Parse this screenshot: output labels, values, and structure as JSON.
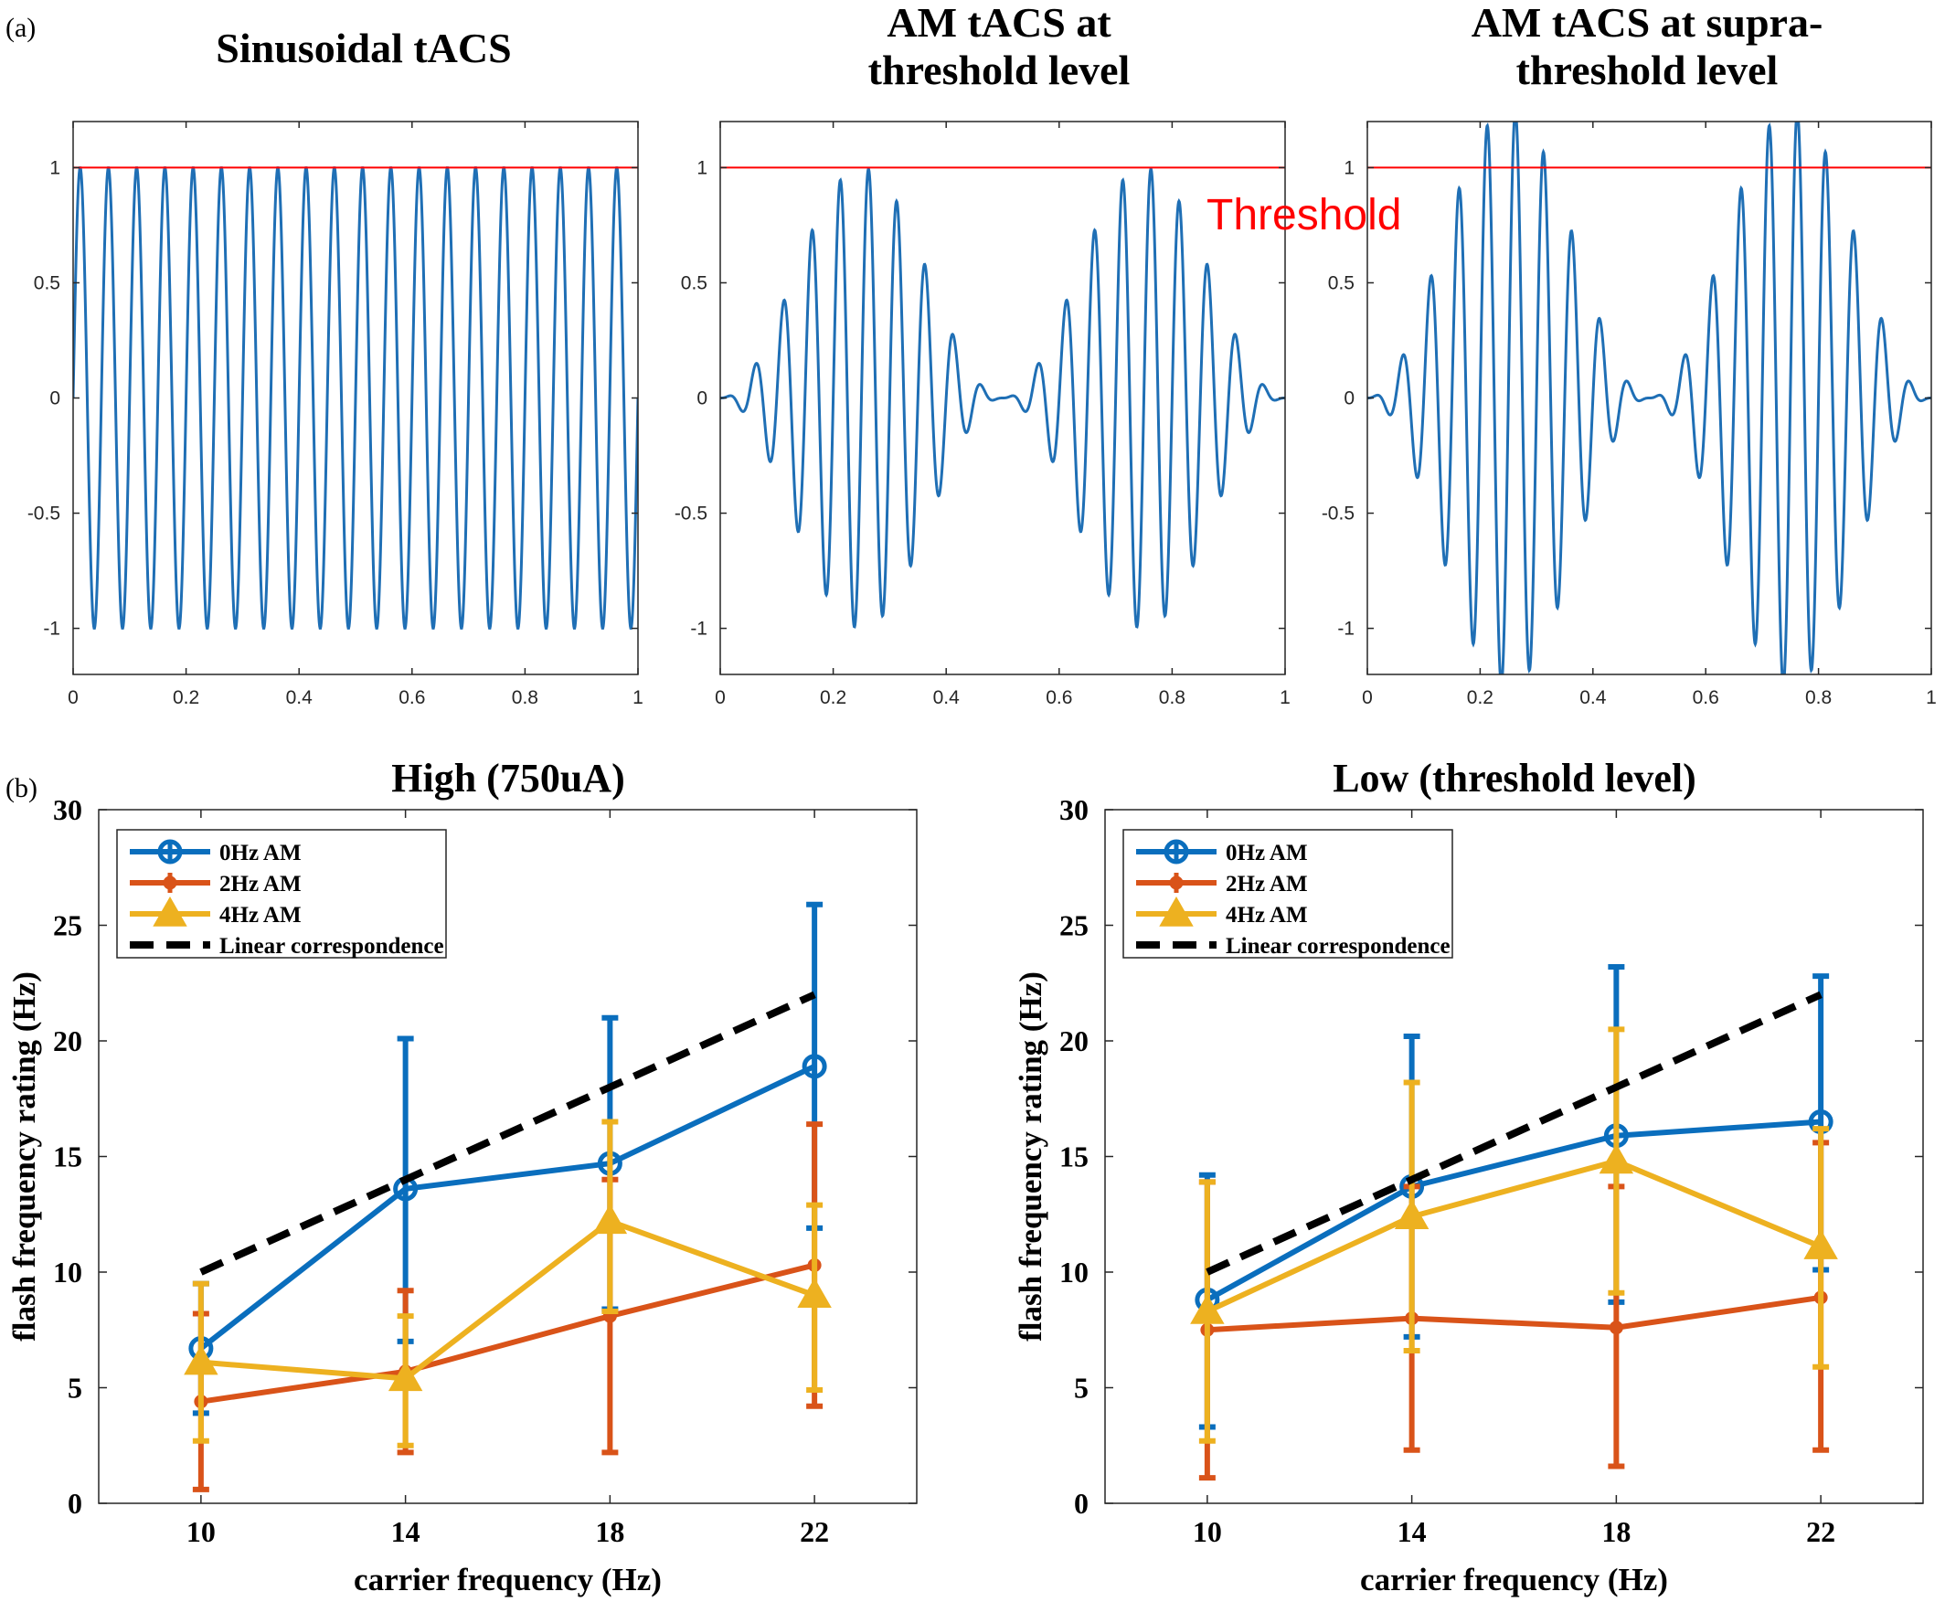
{
  "panel_labels": {
    "a": "(a)",
    "b": "(b)"
  },
  "threshold_annotation": "Threshold",
  "colors": {
    "wave": "#1f6fb5",
    "threshold": "#ff0000",
    "s0": "#0a6ebd",
    "s2": "#d95319",
    "s4": "#edb120",
    "linear": "#000000",
    "annotation": "#ff0000"
  },
  "chart_data": [
    {
      "type": "line",
      "title": "Sinusoidal tACS",
      "xlabel": "",
      "ylabel": "",
      "xlim": [
        0,
        1
      ],
      "ylim": [
        -1.2,
        1.2
      ],
      "xticks": [
        "0",
        "0.2",
        "0.4",
        "0.6",
        "0.8",
        "1"
      ],
      "yticks": [
        "-1",
        "-0.5",
        "0",
        "0.5",
        "1"
      ],
      "waveform": {
        "carrier_hz": 20,
        "am_hz": 0,
        "envelope_peak": 1.0,
        "samples": 1400
      },
      "threshold": 1,
      "grid": false
    },
    {
      "type": "line",
      "title": "AM tACS at threshold level",
      "xlabel": "",
      "ylabel": "",
      "xlim": [
        0,
        1
      ],
      "ylim": [
        -1.2,
        1.2
      ],
      "xticks": [
        "0",
        "0.2",
        "0.4",
        "0.6",
        "0.8",
        "1"
      ],
      "yticks": [
        "-1",
        "-0.5",
        "0",
        "0.5",
        "1"
      ],
      "waveform": {
        "carrier_hz": 20,
        "am_hz": 2,
        "envelope_peak": 1.0,
        "samples": 1400
      },
      "threshold": 1,
      "grid": false
    },
    {
      "type": "line",
      "title": "AM tACS at supra-threshold level",
      "xlabel": "",
      "ylabel": "",
      "xlim": [
        0,
        1
      ],
      "ylim": [
        -1.2,
        1.2
      ],
      "xticks": [
        "0",
        "0.2",
        "0.4",
        "0.6",
        "0.8",
        "1"
      ],
      "yticks": [
        "-1",
        "-0.5",
        "0",
        "0.5",
        "1"
      ],
      "waveform": {
        "carrier_hz": 20,
        "am_hz": 2,
        "envelope_peak": 1.25,
        "samples": 1400
      },
      "threshold": 1,
      "grid": false
    },
    {
      "type": "line",
      "title": "High (750uA)",
      "xlabel": "carrier frequency (Hz)",
      "ylabel": "flash frequency rating (Hz)",
      "xlim": [
        8,
        24
      ],
      "ylim": [
        0,
        30
      ],
      "x": [
        10,
        14,
        18,
        22
      ],
      "xticks": [
        "10",
        "14",
        "18",
        "22"
      ],
      "yticks": [
        "0",
        "5",
        "10",
        "15",
        "20",
        "25",
        "30"
      ],
      "legend_position": "top-left",
      "series": [
        {
          "name": "0Hz AM",
          "marker": "circle",
          "values": [
            6.7,
            13.6,
            14.7,
            18.9
          ],
          "lower": [
            3.9,
            7.0,
            8.4,
            11.9
          ],
          "upper": [
            9.5,
            20.1,
            21.0,
            25.9
          ]
        },
        {
          "name": "2Hz AM",
          "marker": "dot",
          "values": [
            4.4,
            5.7,
            8.1,
            10.3
          ],
          "lower": [
            0.6,
            2.2,
            2.2,
            4.2
          ],
          "upper": [
            8.2,
            9.2,
            14.0,
            16.4
          ]
        },
        {
          "name": "4Hz AM",
          "marker": "triangle",
          "values": [
            6.1,
            5.4,
            12.2,
            9.0
          ],
          "lower": [
            2.7,
            2.5,
            8.3,
            4.9
          ],
          "upper": [
            9.5,
            8.1,
            16.5,
            12.9
          ]
        },
        {
          "name": "Linear correspondence",
          "style": "dashed",
          "values": [
            10,
            14,
            18,
            22
          ]
        }
      ]
    },
    {
      "type": "line",
      "title": "Low (threshold level)",
      "xlabel": "carrier frequency (Hz)",
      "ylabel": "flash frequency rating (Hz)",
      "xlim": [
        8,
        24
      ],
      "ylim": [
        0,
        30
      ],
      "x": [
        10,
        14,
        18,
        22
      ],
      "xticks": [
        "10",
        "14",
        "18",
        "22"
      ],
      "yticks": [
        "0",
        "5",
        "10",
        "15",
        "20",
        "25",
        "30"
      ],
      "legend_position": "top-left",
      "series": [
        {
          "name": "0Hz AM",
          "marker": "circle",
          "values": [
            8.8,
            13.7,
            15.9,
            16.5
          ],
          "lower": [
            3.3,
            7.2,
            8.7,
            10.1
          ],
          "upper": [
            14.2,
            20.2,
            23.2,
            22.8
          ]
        },
        {
          "name": "2Hz AM",
          "marker": "dot",
          "values": [
            7.5,
            8.0,
            7.6,
            8.9
          ],
          "lower": [
            1.1,
            2.3,
            1.6,
            2.3
          ],
          "upper": [
            13.9,
            13.7,
            13.7,
            15.6
          ]
        },
        {
          "name": "4Hz AM",
          "marker": "triangle",
          "values": [
            8.3,
            12.4,
            14.8,
            11.1
          ],
          "lower": [
            2.7,
            6.6,
            9.1,
            5.9
          ],
          "upper": [
            13.9,
            18.2,
            20.5,
            16.2
          ]
        },
        {
          "name": "Linear correspondence",
          "style": "dashed",
          "values": [
            10,
            14,
            18,
            22
          ]
        }
      ]
    }
  ]
}
